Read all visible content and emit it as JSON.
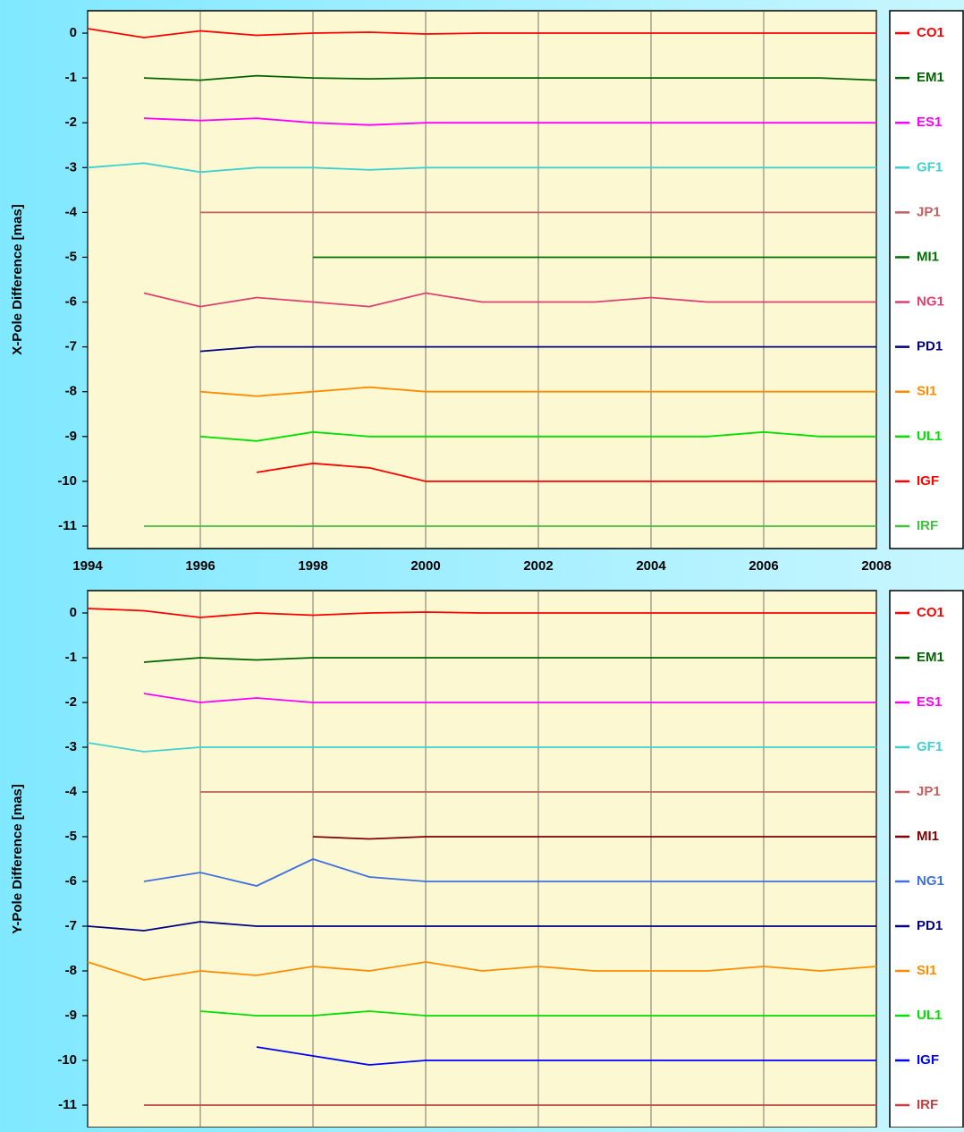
{
  "chart_data": [
    {
      "type": "line",
      "y_label": "X-Pole Difference [mas]",
      "grid": true,
      "xlim": [
        1994,
        2008
      ],
      "xticks": [
        1994,
        1996,
        1998,
        2000,
        2002,
        2004,
        2006,
        2008
      ],
      "ylim": [
        -11.5,
        0.5
      ],
      "yticks": [
        0,
        -1,
        -2,
        -3,
        -4,
        -5,
        -6,
        -7,
        -8,
        -9,
        -10,
        -11
      ],
      "x": [
        1994,
        1995,
        1996,
        1997,
        1998,
        1999,
        2000,
        2001,
        2002,
        2003,
        2004,
        2005,
        2006,
        2007,
        2008
      ],
      "series": [
        {
          "name": "CO1",
          "color": "#ff0000",
          "values": [
            0.1,
            -0.1,
            0.05,
            -0.05,
            0,
            0.02,
            -0.02,
            0,
            0,
            0,
            0,
            0,
            0,
            0,
            0
          ]
        },
        {
          "name": "EM1",
          "color": "#006400",
          "values": [
            null,
            -1,
            -1.05,
            -0.95,
            -1,
            -1.02,
            -1,
            -1,
            -1,
            -1,
            -1,
            -1,
            -1,
            -1,
            -1.05
          ]
        },
        {
          "name": "ES1",
          "color": "#ff00ff",
          "values": [
            null,
            -1.9,
            -1.95,
            -1.9,
            -2,
            -2.05,
            -2,
            -2,
            -2,
            -2,
            -2,
            -2,
            -2,
            -2,
            -2
          ]
        },
        {
          "name": "GF1",
          "color": "#40d0d0",
          "values": [
            -3,
            -2.9,
            -3.1,
            -3,
            -3,
            -3.05,
            -3,
            -3,
            -3,
            -3,
            -3,
            -3,
            -3,
            -3,
            -3
          ]
        },
        {
          "name": "JP1",
          "color": "#c06060",
          "values": [
            null,
            null,
            -4,
            -4,
            -4,
            -4,
            -4,
            -4,
            -4,
            -4,
            -4,
            -4,
            -4,
            -4,
            -4
          ]
        },
        {
          "name": "MI1",
          "color": "#007000",
          "values": [
            null,
            null,
            null,
            null,
            -5,
            -5,
            -5,
            -5,
            -5,
            -5,
            -5,
            -5,
            -5,
            -5,
            -5
          ]
        },
        {
          "name": "NG1",
          "color": "#e04070",
          "values": [
            null,
            -5.8,
            -6.1,
            -5.9,
            -6,
            -6.1,
            -5.8,
            -6,
            -6,
            -6,
            -5.9,
            -6,
            -6,
            -6,
            -6
          ]
        },
        {
          "name": "PD1",
          "color": "#000080",
          "values": [
            null,
            null,
            -7.1,
            -7,
            -7,
            -7,
            -7,
            -7,
            -7,
            -7,
            -7,
            -7,
            -7,
            -7,
            -7
          ]
        },
        {
          "name": "SI1",
          "color": "#ff8c00",
          "values": [
            null,
            null,
            -8,
            -8.1,
            -8,
            -7.9,
            -8,
            -8,
            -8,
            -8,
            -8,
            -8,
            -8,
            -8,
            -8
          ]
        },
        {
          "name": "UL1",
          "color": "#00e000",
          "values": [
            null,
            null,
            -9,
            -9.1,
            -8.9,
            -9,
            -9,
            -9,
            -9,
            -9,
            -9,
            -9,
            -8.9,
            -9,
            -9
          ]
        },
        {
          "name": "IGF",
          "color": "#ff0000",
          "values": [
            null,
            null,
            null,
            -9.8,
            -9.6,
            -9.7,
            -10,
            -10,
            -10,
            -10,
            -10,
            -10,
            -10,
            -10,
            -10
          ]
        },
        {
          "name": "IRF",
          "color": "#40c040",
          "values": [
            null,
            -11,
            -11,
            -11,
            -11,
            -11,
            -11,
            -11,
            -11,
            -11,
            -11,
            -11,
            -11,
            -11,
            -11
          ]
        }
      ]
    },
    {
      "type": "line",
      "y_label": "Y-Pole Difference [mas]",
      "grid": true,
      "xlim": [
        1994,
        2008
      ],
      "xticks": [
        1994,
        1996,
        1998,
        2000,
        2002,
        2004,
        2006,
        2008
      ],
      "ylim": [
        -11.5,
        0.5
      ],
      "yticks": [
        0,
        -1,
        -2,
        -3,
        -4,
        -5,
        -6,
        -7,
        -8,
        -9,
        -10,
        -11
      ],
      "x": [
        1994,
        1995,
        1996,
        1997,
        1998,
        1999,
        2000,
        2001,
        2002,
        2003,
        2004,
        2005,
        2006,
        2007,
        2008
      ],
      "series": [
        {
          "name": "CO1",
          "color": "#ff0000",
          "values": [
            0.1,
            0.05,
            -0.1,
            0,
            -0.05,
            0,
            0.02,
            0,
            0,
            0,
            0,
            0,
            0,
            0,
            0
          ]
        },
        {
          "name": "EM1",
          "color": "#006400",
          "values": [
            null,
            -1.1,
            -1,
            -1.05,
            -1,
            -1,
            -1,
            -1,
            -1,
            -1,
            -1,
            -1,
            -1,
            -1,
            -1
          ]
        },
        {
          "name": "ES1",
          "color": "#ff00ff",
          "values": [
            null,
            -1.8,
            -2,
            -1.9,
            -2,
            -2,
            -2,
            -2,
            -2,
            -2,
            -2,
            -2,
            -2,
            -2,
            -2
          ]
        },
        {
          "name": "GF1",
          "color": "#40d0d0",
          "values": [
            -2.9,
            -3.1,
            -3,
            -3,
            -3,
            -3,
            -3,
            -3,
            -3,
            -3,
            -3,
            -3,
            -3,
            -3,
            -3
          ]
        },
        {
          "name": "JP1",
          "color": "#c06060",
          "values": [
            null,
            null,
            -4,
            -4,
            -4,
            -4,
            -4,
            -4,
            -4,
            -4,
            -4,
            -4,
            -4,
            -4,
            -4
          ]
        },
        {
          "name": "MI1",
          "color": "#800000",
          "values": [
            null,
            null,
            null,
            null,
            -5,
            -5.05,
            -5,
            -5,
            -5,
            -5,
            -5,
            -5,
            -5,
            -5,
            -5
          ]
        },
        {
          "name": "NG1",
          "color": "#4070e0",
          "values": [
            null,
            -6,
            -5.8,
            -6.1,
            -5.5,
            -5.9,
            -6,
            -6,
            -6,
            -6,
            -6,
            -6,
            -6,
            -6,
            -6
          ]
        },
        {
          "name": "PD1",
          "color": "#000080",
          "values": [
            -7,
            -7.1,
            -6.9,
            -7,
            -7,
            -7,
            -7,
            -7,
            -7,
            -7,
            -7,
            -7,
            -7,
            -7,
            -7
          ]
        },
        {
          "name": "SI1",
          "color": "#ff8c00",
          "values": [
            -7.8,
            -8.2,
            -8,
            -8.1,
            -7.9,
            -8,
            -7.8,
            -8,
            -7.9,
            -8,
            -8,
            -8,
            -7.9,
            -8,
            -7.9
          ]
        },
        {
          "name": "UL1",
          "color": "#00e000",
          "values": [
            null,
            null,
            -8.9,
            -9,
            -9,
            -8.9,
            -9,
            -9,
            -9,
            -9,
            -9,
            -9,
            -9,
            -9,
            -9
          ]
        },
        {
          "name": "IGF",
          "color": "#0000ff",
          "values": [
            null,
            null,
            null,
            -9.7,
            -9.9,
            -10.1,
            -10,
            -10,
            -10,
            -10,
            -10,
            -10,
            -10,
            -10,
            -10
          ]
        },
        {
          "name": "IRF",
          "color": "#c04040",
          "values": [
            null,
            -11,
            -11,
            -11,
            -11,
            -11,
            -11,
            -11,
            -11,
            -11,
            -11,
            -11,
            -11,
            -11,
            -11
          ]
        }
      ]
    }
  ]
}
